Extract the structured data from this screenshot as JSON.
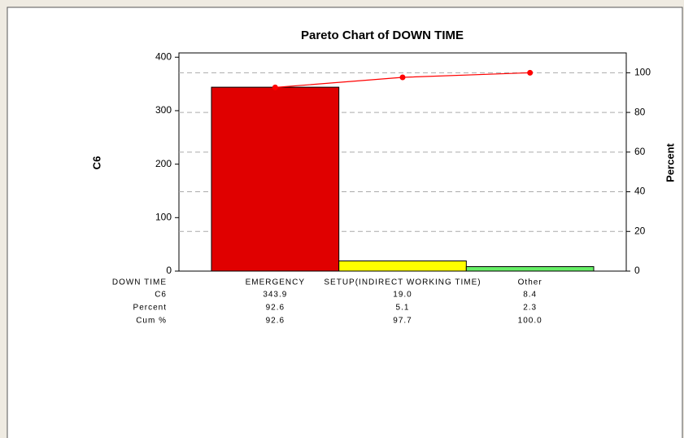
{
  "chart_data": {
    "type": "pareto",
    "title": "Pareto Chart of DOWN TIME",
    "ylabel": "C6",
    "y2label": "Percent",
    "x_label": "DOWN TIME",
    "categories": [
      "EMERGENCY",
      "SETUP(INDIRECT WORKING TIME)",
      "Other"
    ],
    "series": [
      {
        "name": "C6",
        "values": [
          343.9,
          19,
          8.4
        ],
        "value_labels": [
          "343.9",
          "19.0",
          "8.4"
        ],
        "colors": [
          "#e00000",
          "#ffff00",
          "#66ee66"
        ]
      },
      {
        "name": "Percent",
        "values": [
          92.6,
          5.1,
          2.3
        ]
      },
      {
        "name": "Cum %",
        "values": [
          92.6,
          97.7,
          100
        ],
        "value_labels": [
          "92.6",
          "97.7",
          "100.0"
        ],
        "color": "#ff0000",
        "axis": "y2"
      }
    ],
    "ylim": [
      0,
      408
    ],
    "yticks": [
      0,
      100,
      200,
      300,
      400
    ],
    "y2lim": [
      0,
      110
    ],
    "y2ticks": [
      0,
      20,
      40,
      60,
      80,
      100
    ],
    "grid": true
  }
}
